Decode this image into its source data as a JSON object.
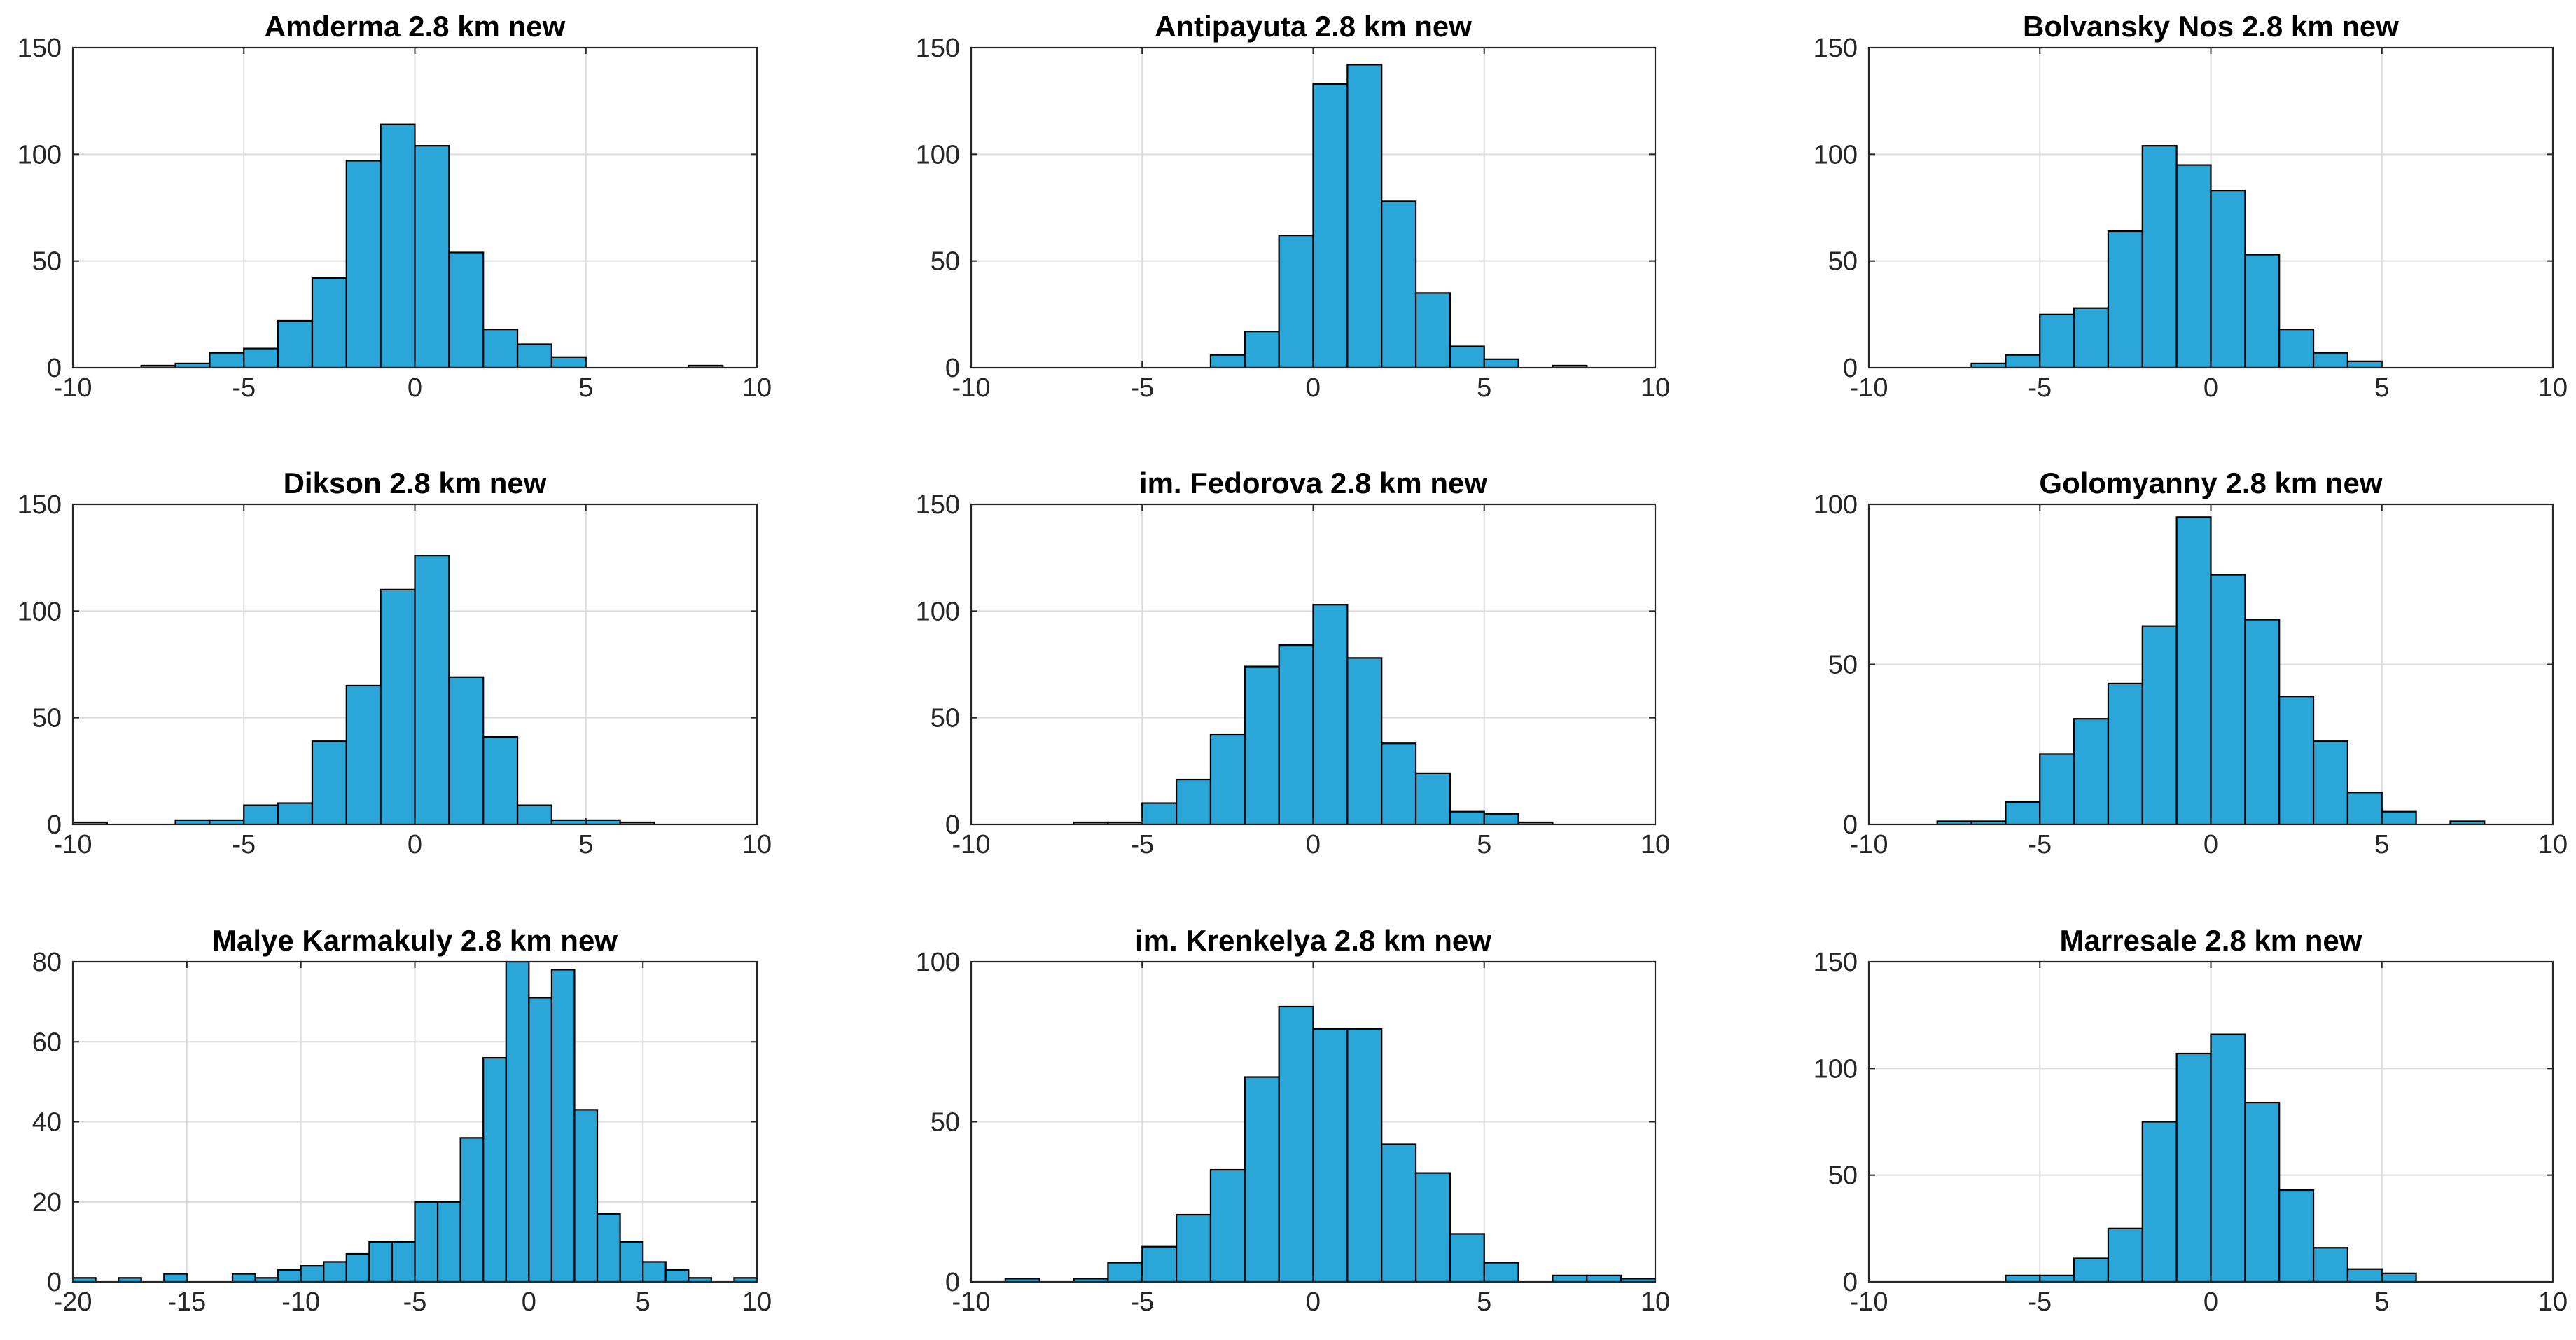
{
  "figure": {
    "bar_color": "#2aa6d9",
    "edge_color": "#000000",
    "grid": true
  },
  "chart_data": [
    {
      "type": "bar",
      "title": "Amderma 2.8 km new",
      "xlim": [
        -10,
        10
      ],
      "ylim": [
        0,
        150
      ],
      "xticks": [
        -10,
        -5,
        0,
        5,
        10
      ],
      "yticks": [
        0,
        50,
        100,
        150
      ],
      "bin_width": 1,
      "bins": [
        [
          -8,
          1
        ],
        [
          -7,
          2
        ],
        [
          -6,
          7
        ],
        [
          -5,
          9
        ],
        [
          -4,
          22
        ],
        [
          -3,
          42
        ],
        [
          -2,
          97
        ],
        [
          -1,
          114
        ],
        [
          0,
          104
        ],
        [
          1,
          54
        ],
        [
          2,
          18
        ],
        [
          3,
          11
        ],
        [
          4,
          5
        ],
        [
          8,
          1
        ]
      ]
    },
    {
      "type": "bar",
      "title": "Antipayuta 2.8 km new",
      "xlim": [
        -10,
        10
      ],
      "ylim": [
        0,
        150
      ],
      "xticks": [
        -10,
        -5,
        0,
        5,
        10
      ],
      "yticks": [
        0,
        50,
        100,
        150
      ],
      "bin_width": 1,
      "bins": [
        [
          -3,
          6
        ],
        [
          -2,
          17
        ],
        [
          -1,
          62
        ],
        [
          0,
          133
        ],
        [
          1,
          142
        ],
        [
          2,
          78
        ],
        [
          3,
          35
        ],
        [
          4,
          10
        ],
        [
          5,
          4
        ],
        [
          7,
          1
        ]
      ]
    },
    {
      "type": "bar",
      "title": "Bolvansky Nos 2.8 km new",
      "xlim": [
        -10,
        10
      ],
      "ylim": [
        0,
        150
      ],
      "xticks": [
        -10,
        -5,
        0,
        5,
        10
      ],
      "yticks": [
        0,
        50,
        100,
        150
      ],
      "bin_width": 1,
      "bins": [
        [
          -7,
          2
        ],
        [
          -6,
          6
        ],
        [
          -5,
          25
        ],
        [
          -4,
          28
        ],
        [
          -3,
          64
        ],
        [
          -2,
          104
        ],
        [
          -1,
          95
        ],
        [
          0,
          83
        ],
        [
          1,
          53
        ],
        [
          2,
          18
        ],
        [
          3,
          7
        ],
        [
          4,
          3
        ]
      ]
    },
    {
      "type": "bar",
      "title": "Dikson 2.8 km new",
      "xlim": [
        -10,
        10
      ],
      "ylim": [
        0,
        150
      ],
      "xticks": [
        -10,
        -5,
        0,
        5,
        10
      ],
      "yticks": [
        0,
        50,
        100,
        150
      ],
      "bin_width": 1,
      "bins": [
        [
          -10,
          1
        ],
        [
          -7,
          2
        ],
        [
          -6,
          2
        ],
        [
          -5,
          9
        ],
        [
          -4,
          10
        ],
        [
          -3,
          39
        ],
        [
          -2,
          65
        ],
        [
          -1,
          110
        ],
        [
          0,
          126
        ],
        [
          1,
          69
        ],
        [
          2,
          41
        ],
        [
          3,
          9
        ],
        [
          4,
          2
        ],
        [
          5,
          2
        ],
        [
          6,
          1
        ]
      ]
    },
    {
      "type": "bar",
      "title": "im. Fedorova 2.8 km new",
      "xlim": [
        -10,
        10
      ],
      "ylim": [
        0,
        150
      ],
      "xticks": [
        -10,
        -5,
        0,
        5,
        10
      ],
      "yticks": [
        0,
        50,
        100,
        150
      ],
      "bin_width": 1,
      "bins": [
        [
          -7,
          1
        ],
        [
          -6,
          1
        ],
        [
          -5,
          10
        ],
        [
          -4,
          21
        ],
        [
          -3,
          42
        ],
        [
          -2,
          74
        ],
        [
          -1,
          84
        ],
        [
          0,
          103
        ],
        [
          1,
          78
        ],
        [
          2,
          38
        ],
        [
          3,
          24
        ],
        [
          4,
          6
        ],
        [
          5,
          5
        ],
        [
          6,
          1
        ]
      ]
    },
    {
      "type": "bar",
      "title": "Golomyanny 2.8 km new",
      "xlim": [
        -10,
        10
      ],
      "ylim": [
        0,
        100
      ],
      "xticks": [
        -10,
        -5,
        0,
        5,
        10
      ],
      "yticks": [
        0,
        50,
        100
      ],
      "bin_width": 1,
      "bins": [
        [
          -8,
          1
        ],
        [
          -7,
          1
        ],
        [
          -6,
          7
        ],
        [
          -5,
          22
        ],
        [
          -4,
          33
        ],
        [
          -3,
          44
        ],
        [
          -2,
          62
        ],
        [
          -1,
          96
        ],
        [
          0,
          78
        ],
        [
          1,
          64
        ],
        [
          2,
          40
        ],
        [
          3,
          26
        ],
        [
          4,
          10
        ],
        [
          5,
          4
        ],
        [
          7,
          1
        ]
      ]
    },
    {
      "type": "bar",
      "title": "Malye Karmakuly 2.8 km new",
      "xlim": [
        -20,
        10
      ],
      "ylim": [
        0,
        80
      ],
      "xticks": [
        -20,
        -15,
        -10,
        -5,
        0,
        5,
        10
      ],
      "yticks": [
        0,
        20,
        40,
        60,
        80
      ],
      "bin_width": 1,
      "bins": [
        [
          -20,
          1
        ],
        [
          -18,
          1
        ],
        [
          -16,
          2
        ],
        [
          -13,
          2
        ],
        [
          -12,
          1
        ],
        [
          -11,
          3
        ],
        [
          -10,
          4
        ],
        [
          -9,
          5
        ],
        [
          -8,
          7
        ],
        [
          -7,
          10
        ],
        [
          -6,
          10
        ],
        [
          -5,
          20
        ],
        [
          -4,
          20
        ],
        [
          -3,
          36
        ],
        [
          -2,
          56
        ],
        [
          -1,
          80
        ],
        [
          0,
          71
        ],
        [
          1,
          78
        ],
        [
          2,
          43
        ],
        [
          3,
          17
        ],
        [
          4,
          10
        ],
        [
          5,
          5
        ],
        [
          6,
          3
        ],
        [
          7,
          1
        ],
        [
          9,
          1
        ]
      ]
    },
    {
      "type": "bar",
      "title": "im. Krenkelya 2.8 km new",
      "xlim": [
        -10,
        10
      ],
      "ylim": [
        0,
        100
      ],
      "xticks": [
        -10,
        -5,
        0,
        5,
        10
      ],
      "yticks": [
        0,
        50,
        100
      ],
      "bin_width": 1,
      "bins": [
        [
          -9,
          1
        ],
        [
          -7,
          1
        ],
        [
          -6,
          6
        ],
        [
          -5,
          11
        ],
        [
          -4,
          21
        ],
        [
          -3,
          35
        ],
        [
          -2,
          64
        ],
        [
          -1,
          86
        ],
        [
          0,
          79
        ],
        [
          1,
          79
        ],
        [
          2,
          43
        ],
        [
          3,
          34
        ],
        [
          4,
          15
        ],
        [
          5,
          6
        ],
        [
          7,
          2
        ],
        [
          8,
          2
        ],
        [
          9,
          1
        ]
      ]
    },
    {
      "type": "bar",
      "title": "Marresale 2.8 km new",
      "xlim": [
        -10,
        10
      ],
      "ylim": [
        0,
        150
      ],
      "xticks": [
        -10,
        -5,
        0,
        5,
        10
      ],
      "yticks": [
        0,
        50,
        100,
        150
      ],
      "bin_width": 1,
      "bins": [
        [
          -6,
          3
        ],
        [
          -5,
          3
        ],
        [
          -4,
          11
        ],
        [
          -3,
          25
        ],
        [
          -2,
          75
        ],
        [
          -1,
          107
        ],
        [
          0,
          116
        ],
        [
          1,
          84
        ],
        [
          2,
          43
        ],
        [
          3,
          16
        ],
        [
          4,
          6
        ],
        [
          5,
          4
        ]
      ]
    }
  ]
}
